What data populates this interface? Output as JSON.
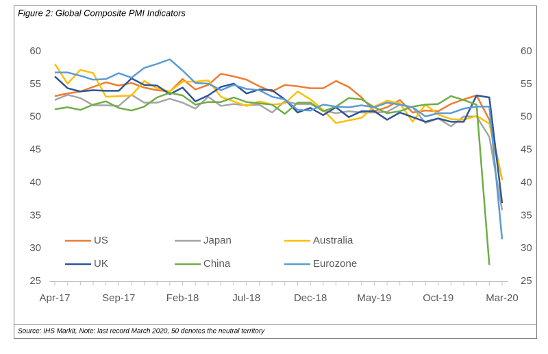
{
  "chart_data": {
    "type": "line",
    "title": "Figure 2: Global Composite PMI Indicators",
    "source": "Source: IHS Markit, Note: last record March 2020, 50 denotes the neutral territory",
    "categories": [
      "Apr-17",
      null,
      null,
      null,
      null,
      "Sep-17",
      null,
      null,
      null,
      null,
      "Feb-18",
      null,
      null,
      null,
      null,
      "Jul-18",
      null,
      null,
      null,
      null,
      "Dec-18",
      null,
      null,
      null,
      null,
      "May-19",
      null,
      null,
      null,
      null,
      "Oct-19",
      null,
      null,
      null,
      null,
      "Mar-20"
    ],
    "ylim": [
      25,
      60
    ],
    "yticks": [
      25,
      30,
      35,
      40,
      45,
      50,
      55,
      60
    ],
    "y2lim": [
      25,
      60
    ],
    "y2ticks": [
      25,
      30,
      35,
      40,
      45,
      50,
      55,
      60
    ],
    "grid": false,
    "legend": "inside-bottom",
    "series": [
      {
        "name": "US",
        "color": "#ed7d31",
        "values": [
          53.2,
          53.6,
          53.9,
          54.6,
          55.3,
          54.8,
          55.2,
          54.5,
          54.1,
          53.9,
          55.8,
          54.2,
          54.9,
          56.6,
          56.2,
          55.7,
          54.7,
          53.9,
          54.9,
          54.7,
          54.4,
          54.4,
          55.5,
          54.6,
          53.0,
          50.9,
          51.5,
          52.6,
          50.7,
          51.0,
          50.9,
          52.0,
          52.7,
          53.3,
          49.6,
          40.5
        ]
      },
      {
        "name": "Japan",
        "color": "#a5a5a5",
        "values": [
          52.6,
          53.4,
          52.9,
          51.8,
          51.8,
          51.7,
          53.4,
          52.2,
          52.2,
          52.8,
          52.2,
          51.3,
          53.1,
          51.7,
          52.0,
          51.8,
          51.9,
          50.7,
          52.4,
          52.0,
          52.0,
          51.0,
          50.6,
          50.9,
          50.7,
          50.7,
          50.8,
          51.9,
          51.5,
          49.1,
          49.8,
          48.6,
          50.1,
          50.1,
          47.0,
          35.8
        ]
      },
      {
        "name": "Australia",
        "color": "#ffc000",
        "values": [
          58.1,
          55.1,
          57.2,
          56.7,
          53.1,
          53.2,
          53.3,
          55.5,
          54.4,
          53.9,
          55.4,
          55.4,
          55.6,
          53.1,
          52.4,
          51.7,
          52.4,
          51.9,
          52.1,
          53.9,
          52.7,
          51.1,
          49.1,
          49.5,
          49.9,
          51.6,
          52.5,
          52.1,
          49.3,
          51.9,
          50.4,
          49.7,
          49.6,
          50.2,
          49.0,
          40.4
        ]
      },
      {
        "name": "UK",
        "color": "#2f5597",
        "values": [
          56.2,
          54.4,
          53.9,
          54.1,
          54.0,
          54.0,
          55.9,
          54.9,
          54.8,
          53.5,
          54.5,
          52.4,
          53.3,
          54.6,
          55.1,
          53.6,
          54.2,
          54.1,
          52.7,
          50.7,
          51.4,
          50.3,
          51.5,
          50.0,
          50.9,
          50.9,
          49.6,
          50.7,
          50.0,
          49.3,
          49.8,
          49.3,
          49.3,
          53.3,
          53.0,
          36.9
        ]
      },
      {
        "name": "China",
        "color": "#70ad47",
        "values": [
          51.2,
          51.5,
          51.1,
          51.9,
          52.4,
          51.4,
          51.0,
          51.6,
          53.0,
          53.7,
          53.3,
          51.9,
          52.3,
          52.3,
          53.0,
          52.3,
          52.1,
          51.9,
          50.5,
          52.2,
          52.2,
          50.9,
          51.6,
          52.9,
          52.7,
          51.5,
          50.6,
          50.9,
          51.6,
          51.9,
          52.0,
          53.2,
          52.6,
          51.9,
          27.5,
          null
        ]
      },
      {
        "name": "Eurozone",
        "color": "#5b9bd5",
        "values": [
          56.8,
          56.8,
          56.3,
          55.7,
          55.8,
          56.7,
          56.0,
          57.5,
          58.1,
          58.8,
          57.1,
          55.2,
          55.1,
          54.1,
          54.9,
          54.3,
          54.1,
          53.1,
          52.7,
          51.1,
          51.0,
          51.9,
          51.6,
          51.5,
          51.8,
          51.5,
          52.2,
          51.9,
          51.5,
          50.1,
          50.6,
          50.6,
          51.3,
          51.6,
          51.6,
          31.4
        ]
      }
    ]
  }
}
